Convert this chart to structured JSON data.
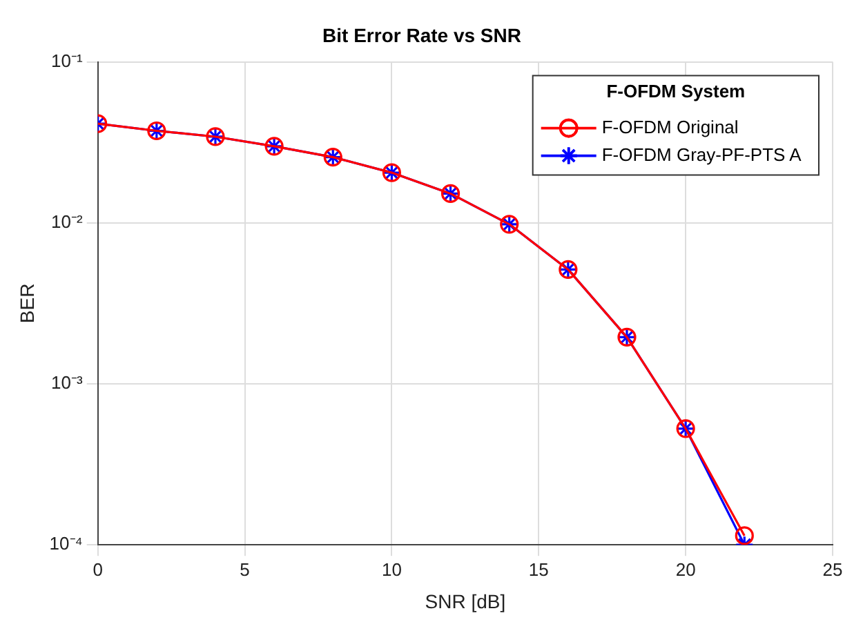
{
  "chart_data": {
    "type": "line",
    "title": "Bit Error Rate vs SNR",
    "xlabel": "SNR [dB]",
    "ylabel": "BER",
    "legend_title": "F-OFDM System",
    "legend": "top right",
    "grid": true,
    "log": "y",
    "x": [
      0,
      2,
      4,
      6,
      8,
      10,
      12,
      14,
      16,
      18,
      20,
      22
    ],
    "xlim": [
      0,
      25
    ],
    "xticks": [
      0,
      5,
      10,
      15,
      20,
      25
    ],
    "ylim": [
      0.0001,
      0.1
    ],
    "yticks": [
      {
        "value": 0.0001,
        "label": "10⁻⁴"
      },
      {
        "value": 0.001,
        "label": "10⁻³"
      },
      {
        "value": 0.01,
        "label": "10⁻²"
      },
      {
        "value": 0.1,
        "label": "10⁻¹"
      }
    ],
    "series": [
      {
        "name": "F-OFDM Original",
        "color": "#ff0000",
        "marker": "circle",
        "values": [
          0.0413,
          0.0373,
          0.0343,
          0.0299,
          0.0256,
          0.0205,
          0.0152,
          0.0098,
          0.00513,
          0.00195,
          0.000527,
          0.000114
        ]
      },
      {
        "name": "F-OFDM Gray-PF-PTS A",
        "color": "#0000ff",
        "marker": "cross",
        "values": [
          0.0413,
          0.0373,
          0.0343,
          0.0299,
          0.0256,
          0.0205,
          0.0152,
          0.0098,
          0.00513,
          0.00195,
          0.000527,
          0.0001
        ]
      }
    ]
  }
}
